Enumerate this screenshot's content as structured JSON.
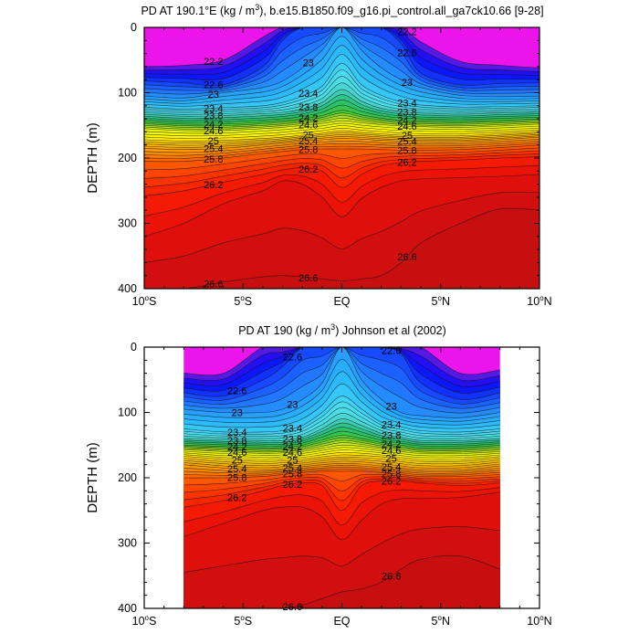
{
  "chart_data": [
    {
      "type": "heatmap",
      "subtype": "filled-contour",
      "title_main": "PD AT 190.1°E (kg / m",
      "title_sup": "3",
      "title_rest": "), b.e15.B1850.f09_g16.pi_control.all_ga7ck10.66 [9-28]",
      "ylabel": "DEPTH (m)",
      "xlabel": "",
      "x_ticks": [
        {
          "v": -10,
          "l": "10°S"
        },
        {
          "v": -5,
          "l": "5°S"
        },
        {
          "v": 0,
          "l": "EQ"
        },
        {
          "v": 5,
          "l": "5°N"
        },
        {
          "v": 10,
          "l": "10°N"
        }
      ],
      "y_ticks": [
        0,
        100,
        200,
        300,
        400
      ],
      "xlim": [
        -10,
        10
      ],
      "ylim": [
        400,
        0
      ],
      "data_xrange": [
        -10,
        10
      ],
      "contour_levels": [
        22.0,
        22.2,
        22.4,
        22.6,
        22.8,
        23.0,
        23.2,
        23.4,
        23.6,
        23.8,
        24.0,
        24.2,
        24.4,
        24.6,
        24.8,
        25.0,
        25.2,
        25.4,
        25.6,
        25.8,
        26.0,
        26.2,
        26.4,
        26.6
      ],
      "isopycnal_depths_m": {
        "x": [
          -10,
          -8,
          -6,
          -4,
          -3,
          -2,
          -1,
          0,
          1,
          2,
          3,
          4,
          6,
          8,
          10
        ],
        "levels": [
          {
            "level": 22.2,
            "depth": [
              60,
              58,
              50,
              15,
              0,
              0,
              0,
              0,
              0,
              0,
              0,
              22,
              52,
              58,
              62
            ]
          },
          {
            "level": 22.6,
            "depth": [
              82,
              85,
              88,
              60,
              20,
              0,
              0,
              0,
              0,
              0,
              25,
              70,
              88,
              86,
              85
            ]
          },
          {
            "level": 23.0,
            "depth": [
              105,
              108,
              100,
              92,
              82,
              62,
              35,
              0,
              35,
              62,
              80,
              92,
              104,
              106,
              105
            ]
          },
          {
            "level": 23.4,
            "depth": [
              122,
              125,
              123,
              120,
              115,
              105,
              90,
              55,
              88,
              104,
              114,
              119,
              122,
              121,
              120
            ]
          },
          {
            "level": 23.8,
            "depth": [
              133,
              136,
              135,
              132,
              130,
              125,
              115,
              95,
              113,
              124,
              129,
              131,
              133,
              131,
              130
            ]
          },
          {
            "level": 24.2,
            "depth": [
              145,
              148,
              148,
              145,
              143,
              140,
              135,
              127,
              134,
              139,
              142,
              143,
              144,
              142,
              140
            ]
          },
          {
            "level": 24.6,
            "depth": [
              155,
              158,
              158,
              155,
              153,
              150,
              147,
              143,
              146,
              149,
              151,
              152,
              153,
              151,
              148
            ]
          },
          {
            "level": 25.0,
            "depth": [
              172,
              174,
              173,
              170,
              168,
              165,
              162,
              158,
              161,
              163,
              165,
              166,
              166,
              163,
              160
            ]
          },
          {
            "level": 25.4,
            "depth": [
              185,
              187,
              185,
              180,
              177,
              174,
              172,
              170,
              171,
              173,
              174,
              175,
              175,
              172,
              168
            ]
          },
          {
            "level": 25.8,
            "depth": [
              205,
              205,
              200,
              193,
              190,
              187,
              186,
              186,
              186,
              187,
              188,
              188,
              187,
              184,
              180
            ]
          },
          {
            "level": 26.2,
            "depth": [
              258,
              250,
              237,
              225,
              218,
              215,
              220,
              245,
              225,
              212,
              207,
              205,
              203,
              200,
              198
            ]
          },
          {
            "level": 26.4,
            "depth": [
              320,
              300,
              270,
              250,
              235,
              240,
              260,
              290,
              262,
              245,
              235,
              232,
              230,
              228,
              225
            ]
          },
          {
            "level": 26.6,
            "depth": [
              400,
              400,
              390,
              382,
              380,
              382,
              385,
              388,
              385,
              380,
              360,
              330,
              300,
              278,
              280
            ]
          }
        ]
      },
      "contour_labels": [
        "22.2",
        "22.6",
        "23",
        "23.4",
        "23.8",
        "24.2",
        "24.6",
        "25",
        "25.4",
        "25.8",
        "26.2",
        "26.6"
      ],
      "colors": {
        "violet": "#ee22ee",
        "purple": "#7a1fd6",
        "blue": "#1040ff",
        "sky": "#2aa0ff",
        "cyan": "#40d8f0",
        "green": "#40c040",
        "yellow": "#ffff00",
        "orange": "#ff9000",
        "red": "#ff2000",
        "darkred": "#c01010"
      }
    },
    {
      "type": "heatmap",
      "subtype": "filled-contour",
      "title_main": "PD AT 190 (kg / m",
      "title_sup": "3",
      "title_rest": ") Johnson et al (2002)",
      "ylabel": "DEPTH (m)",
      "xlabel": "",
      "x_ticks": [
        {
          "v": -10,
          "l": "10°S"
        },
        {
          "v": -5,
          "l": "5°S"
        },
        {
          "v": 0,
          "l": "EQ"
        },
        {
          "v": 5,
          "l": "5°N"
        },
        {
          "v": 10,
          "l": "10°N"
        }
      ],
      "y_ticks": [
        0,
        100,
        200,
        300,
        400
      ],
      "xlim": [
        -10,
        10
      ],
      "ylim": [
        400,
        0
      ],
      "data_xrange": [
        -8,
        8
      ],
      "contour_levels": [
        22.0,
        22.2,
        22.4,
        22.6,
        22.8,
        23.0,
        23.2,
        23.4,
        23.6,
        23.8,
        24.0,
        24.2,
        24.4,
        24.6,
        24.8,
        25.0,
        25.2,
        25.4,
        25.6,
        25.8,
        26.0,
        26.2,
        26.4,
        26.6
      ],
      "isopycnal_depths_m": {
        "x": [
          -8,
          -6,
          -4,
          -3,
          -2,
          -1,
          0,
          1,
          2,
          3,
          4,
          6,
          8
        ],
        "levels": [
          {
            "level": 22.2,
            "depth": [
              40,
              40,
              0,
              0,
              0,
              0,
              0,
              0,
              0,
              0,
              0,
              40,
              35
            ]
          },
          {
            "level": 22.6,
            "depth": [
              70,
              75,
              50,
              30,
              0,
              0,
              0,
              0,
              0,
              10,
              55,
              80,
              70
            ]
          },
          {
            "level": 23.0,
            "depth": [
              95,
              100,
              100,
              95,
              80,
              55,
              0,
              50,
              80,
              100,
              105,
              108,
              100
            ]
          },
          {
            "level": 23.4,
            "depth": [
              125,
              130,
              130,
              128,
              120,
              100,
              75,
              95,
              115,
              122,
              128,
              130,
              125
            ]
          },
          {
            "level": 23.8,
            "depth": [
              140,
              142,
              143,
              143,
              138,
              125,
              110,
              120,
              132,
              138,
              143,
              143,
              140
            ]
          },
          {
            "level": 24.2,
            "depth": [
              150,
              152,
              154,
              154,
              150,
              142,
              135,
              140,
              146,
              150,
              154,
              154,
              150
            ]
          },
          {
            "level": 24.6,
            "depth": [
              157,
              160,
              163,
              162,
              160,
              155,
              150,
              152,
              156,
              160,
              163,
              163,
              160
            ]
          },
          {
            "level": 25.0,
            "depth": [
              167,
              172,
              175,
              174,
              172,
              168,
              165,
              166,
              168,
              172,
              175,
              175,
              170
            ]
          },
          {
            "level": 25.4,
            "depth": [
              180,
              185,
              188,
              186,
              183,
              180,
              178,
              179,
              182,
              185,
              188,
              188,
              182
            ]
          },
          {
            "level": 25.8,
            "depth": [
              200,
              200,
              198,
              195,
              192,
              190,
              190,
              190,
              192,
              195,
              198,
              198,
              195
            ]
          },
          {
            "level": 26.2,
            "depth": [
              245,
              235,
              220,
              212,
              208,
              212,
              250,
              212,
              205,
              205,
              208,
              212,
              208
            ]
          },
          {
            "level": 26.4,
            "depth": [
              290,
              270,
              250,
              245,
              245,
              260,
              295,
              265,
              240,
              232,
              232,
              230,
              222
            ]
          },
          {
            "level": 26.6,
            "depth": [
              400,
              400,
              400,
              400,
              395,
              385,
              375,
              370,
              360,
              340,
              325,
              320,
              340
            ]
          }
        ]
      },
      "contour_labels": [
        "22.6",
        "23",
        "23.4",
        "23.8",
        "24.2",
        "24.6",
        "25",
        "25.4",
        "25.8",
        "26.2",
        "26.6"
      ],
      "colors": {
        "violet": "#ee22ee",
        "purple": "#7a1fd6",
        "blue": "#1040ff",
        "sky": "#2aa0ff",
        "cyan": "#40d8f0",
        "green": "#40c040",
        "yellow": "#ffff00",
        "orange": "#ff9000",
        "red": "#ff2000",
        "darkred": "#c01010"
      }
    }
  ]
}
